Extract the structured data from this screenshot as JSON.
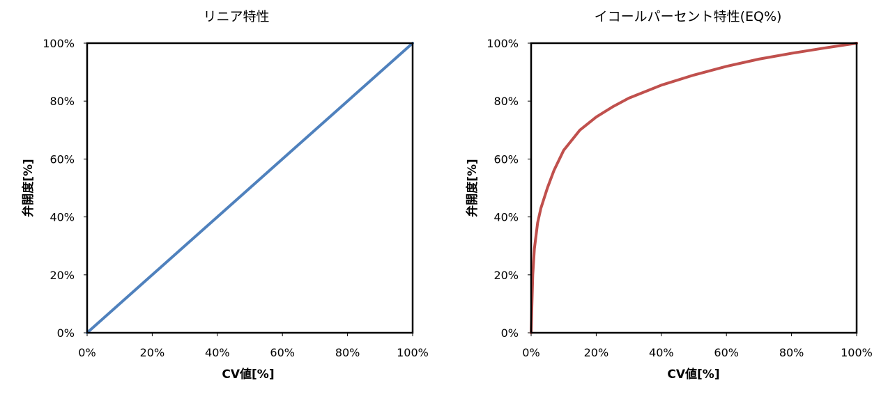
{
  "chart_data": [
    {
      "type": "line",
      "title": "リニア特性",
      "xlabel": "CV値[%]",
      "ylabel": "弁開度[%]",
      "xlim": [
        0,
        100
      ],
      "ylim": [
        0,
        100
      ],
      "x_ticks": [
        "0%",
        "20%",
        "40%",
        "60%",
        "80%",
        "100%"
      ],
      "y_ticks": [
        "0%",
        "20%",
        "40%",
        "60%",
        "80%",
        "100%"
      ],
      "grid": false,
      "legend": "none",
      "series": [
        {
          "color": "#4f81bd",
          "x": [
            0,
            20,
            40,
            60,
            80,
            100
          ],
          "y": [
            0,
            20,
            40,
            60,
            80,
            100
          ]
        }
      ]
    },
    {
      "type": "line",
      "title": "イコールパーセント特性(EQ%)",
      "xlabel": "CV値[%]",
      "ylabel": "弁開度[%]",
      "xlim": [
        0,
        100
      ],
      "ylim": [
        0,
        100
      ],
      "x_ticks": [
        "0%",
        "20%",
        "40%",
        "60%",
        "80%",
        "100%"
      ],
      "y_ticks": [
        "0%",
        "20%",
        "40%",
        "60%",
        "80%",
        "100%"
      ],
      "grid": false,
      "legend": "none",
      "series": [
        {
          "color": "#c0504d",
          "x": [
            0,
            0.5,
            1,
            2,
            3,
            5,
            7,
            10,
            15,
            20,
            25,
            30,
            40,
            50,
            60,
            70,
            80,
            90,
            100
          ],
          "y": [
            0,
            20,
            29,
            38,
            43,
            50,
            56,
            63,
            70,
            74.5,
            78,
            81,
            85.5,
            89,
            92,
            94.5,
            96.5,
            98.3,
            100
          ]
        }
      ]
    }
  ]
}
